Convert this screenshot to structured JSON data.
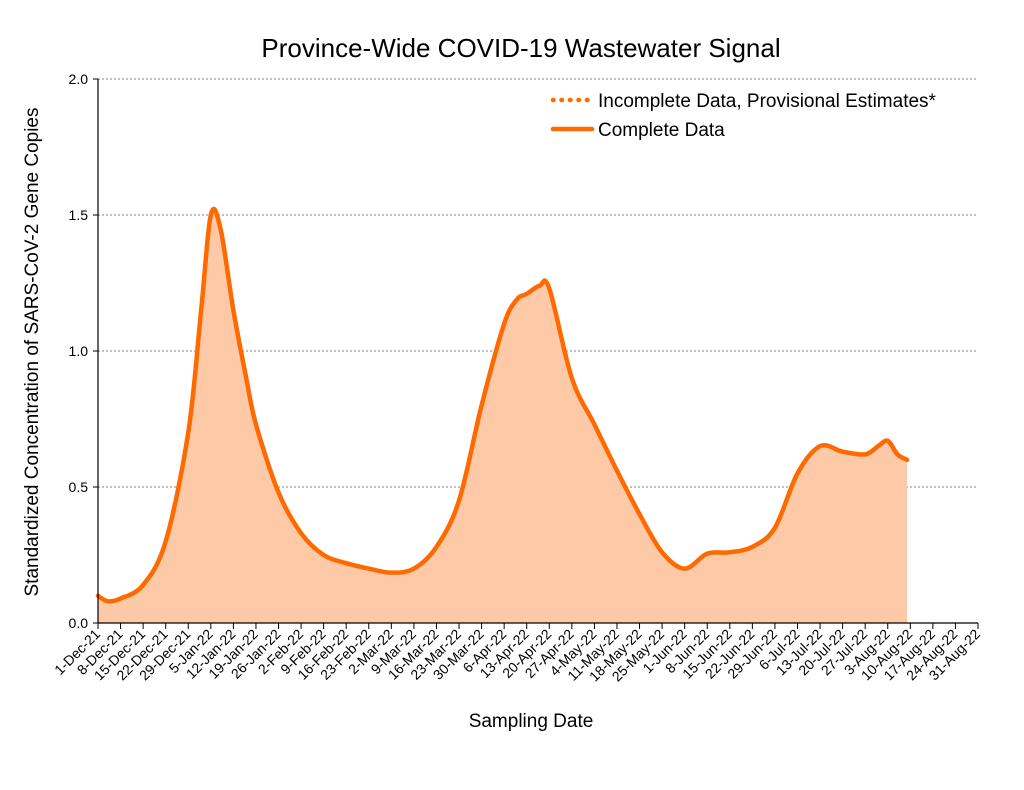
{
  "chart_data": {
    "type": "area",
    "title": "Province-Wide COVID-19 Wastewater Signal",
    "xlabel": "Sampling Date",
    "ylabel": "Standardized Concentration of SARS-CoV-2 Gene Copies",
    "ylim": [
      0,
      2.0
    ],
    "yticks": [
      "0.0",
      "0.5",
      "1.0",
      "1.5",
      "2.0"
    ],
    "xticks": [
      "1-Dec-21",
      "8-Dec-21",
      "15-Dec-21",
      "22-Dec-21",
      "29-Dec-21",
      "5-Jan-22",
      "12-Jan-22",
      "19-Jan-22",
      "26-Jan-22",
      "2-Feb-22",
      "9-Feb-22",
      "16-Feb-22",
      "23-Feb-22",
      "2-Mar-22",
      "9-Mar-22",
      "16-Mar-22",
      "23-Mar-22",
      "30-Mar-22",
      "6-Apr-22",
      "13-Apr-22",
      "20-Apr-22",
      "27-Apr-22",
      "4-May-22",
      "11-May-22",
      "18-May-22",
      "25-May-22",
      "1-Jun-22",
      "8-Jun-22",
      "15-Jun-22",
      "22-Jun-22",
      "29-Jun-22",
      "6-Jul-22",
      "13-Jul-22",
      "20-Jul-22",
      "27-Jul-22",
      "3-Aug-22",
      "10-Aug-22",
      "17-Aug-22",
      "24-Aug-22",
      "31-Aug-22"
    ],
    "grid": true,
    "legend_position": "top-right",
    "legend": [
      {
        "label": "Incomplete Data, Provisional Estimates*",
        "style": "dotted"
      },
      {
        "label": "Complete Data",
        "style": "solid"
      }
    ],
    "colors": {
      "line": "#ff6a00",
      "fill": "#fdc9a6",
      "grid": "#808080"
    },
    "series": [
      {
        "style": "solid",
        "x": [
          "1-Dec-21",
          "4-Dec-21",
          "8-Dec-21",
          "15-Dec-21",
          "22-Dec-21",
          "29-Dec-21",
          "2-Jan-22",
          "5-Jan-22",
          "8-Jan-22",
          "12-Jan-22",
          "16-Jan-22",
          "19-Jan-22",
          "26-Jan-22",
          "2-Feb-22",
          "9-Feb-22",
          "16-Feb-22",
          "23-Feb-22",
          "2-Mar-22",
          "9-Mar-22",
          "16-Mar-22",
          "23-Mar-22",
          "30-Mar-22",
          "6-Apr-22",
          "10-Apr-22",
          "13-Apr-22",
          "17-Apr-22",
          "20-Apr-22",
          "27-Apr-22",
          "4-May-22",
          "11-May-22",
          "18-May-22",
          "25-May-22",
          "1-Jun-22",
          "8-Jun-22",
          "15-Jun-22",
          "22-Jun-22",
          "29-Jun-22",
          "6-Jul-22",
          "13-Jul-22",
          "20-Jul-22",
          "27-Jul-22",
          "31-Jul-22",
          "3-Aug-22",
          "6-Aug-22",
          "9-Aug-22"
        ],
        "values": [
          0.1,
          0.08,
          0.09,
          0.14,
          0.3,
          0.7,
          1.15,
          1.5,
          1.45,
          1.15,
          0.9,
          0.73,
          0.48,
          0.33,
          0.25,
          0.22,
          0.2,
          0.185,
          0.2,
          0.28,
          0.45,
          0.8,
          1.1,
          1.19,
          1.21,
          1.24,
          1.23,
          0.9,
          0.73,
          0.56,
          0.4,
          0.26,
          0.2,
          0.255,
          0.26,
          0.28,
          0.35,
          0.55,
          0.65,
          0.63,
          0.62,
          0.65,
          0.67,
          0.62,
          0.6
        ]
      }
    ]
  }
}
